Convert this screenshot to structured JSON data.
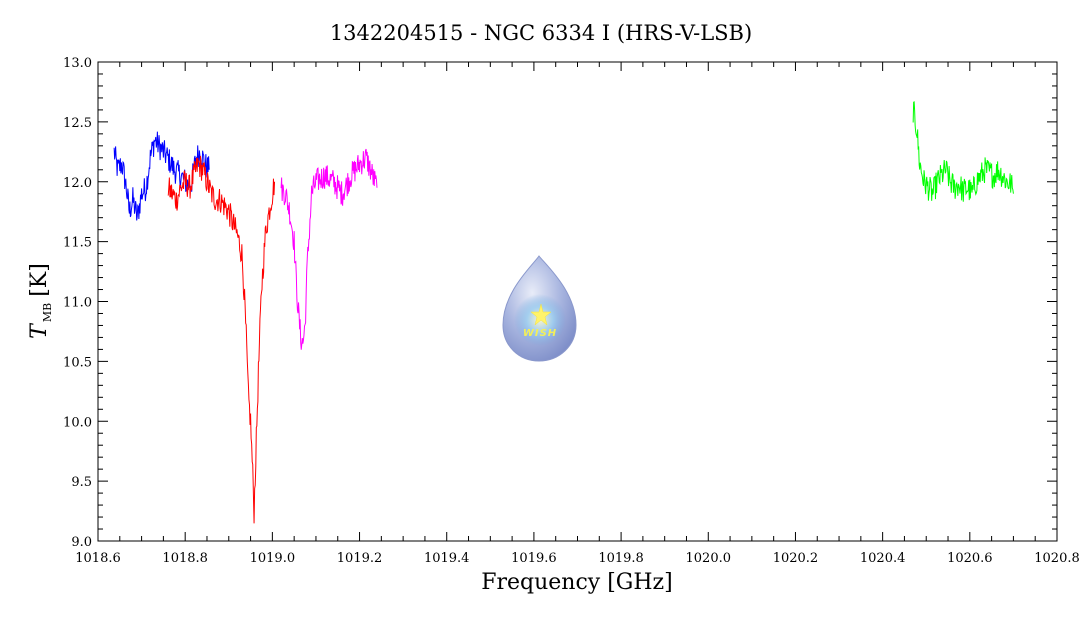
{
  "chart_data": {
    "type": "line",
    "title": "1342204515 - NGC 6334 I (HRS-V-LSB)",
    "xlabel": "Frequency [GHz]",
    "ylabel": {
      "main": "T",
      "sub": "MB",
      "unit": "[K]"
    },
    "xlim": [
      1018.6,
      1020.8
    ],
    "ylim": [
      9.0,
      13.0
    ],
    "x_ticks": [
      "1018.6",
      "1018.8",
      "1019.0",
      "1019.2",
      "1019.4",
      "1019.6",
      "1019.8",
      "1020.0",
      "1020.2",
      "1020.4",
      "1020.6",
      "1020.8"
    ],
    "y_ticks": [
      "9.0",
      "9.5",
      "10.0",
      "10.5",
      "11.0",
      "11.5",
      "12.0",
      "12.5",
      "13.0"
    ],
    "series": [
      {
        "color": "#0000ff",
        "points": [
          [
            1018.637,
            12.25
          ],
          [
            1018.645,
            12.1
          ],
          [
            1018.655,
            12.15
          ],
          [
            1018.665,
            11.95
          ],
          [
            1018.672,
            11.75
          ],
          [
            1018.68,
            11.85
          ],
          [
            1018.69,
            11.7
          ],
          [
            1018.7,
            11.9
          ],
          [
            1018.71,
            11.95
          ],
          [
            1018.72,
            12.2
          ],
          [
            1018.73,
            12.35
          ],
          [
            1018.74,
            12.3
          ],
          [
            1018.75,
            12.25
          ],
          [
            1018.76,
            12.2
          ],
          [
            1018.775,
            12.1
          ],
          [
            1018.79,
            12.05
          ],
          [
            1018.805,
            11.98
          ],
          [
            1018.815,
            12.0
          ],
          [
            1018.825,
            12.2
          ],
          [
            1018.835,
            12.25
          ],
          [
            1018.845,
            12.15
          ],
          [
            1018.855,
            12.1
          ]
        ]
      },
      {
        "color": "#ff0000",
        "points": [
          [
            1018.76,
            11.95
          ],
          [
            1018.77,
            11.9
          ],
          [
            1018.78,
            11.85
          ],
          [
            1018.79,
            11.95
          ],
          [
            1018.8,
            12.0
          ],
          [
            1018.81,
            11.95
          ],
          [
            1018.82,
            12.05
          ],
          [
            1018.83,
            12.15
          ],
          [
            1018.84,
            12.1
          ],
          [
            1018.85,
            12.0
          ],
          [
            1018.86,
            11.9
          ],
          [
            1018.87,
            11.85
          ],
          [
            1018.88,
            11.85
          ],
          [
            1018.89,
            11.8
          ],
          [
            1018.9,
            11.75
          ],
          [
            1018.91,
            11.65
          ],
          [
            1018.92,
            11.55
          ],
          [
            1018.93,
            11.4
          ],
          [
            1018.935,
            11.1
          ],
          [
            1018.94,
            10.7
          ],
          [
            1018.945,
            10.2
          ],
          [
            1018.95,
            10.0
          ],
          [
            1018.955,
            9.55
          ],
          [
            1018.958,
            9.25
          ],
          [
            1018.962,
            9.7
          ],
          [
            1018.968,
            10.4
          ],
          [
            1018.975,
            11.1
          ],
          [
            1018.985,
            11.6
          ],
          [
            1018.995,
            11.8
          ],
          [
            1019.005,
            12.0
          ]
        ]
      },
      {
        "color": "#ff00ff",
        "points": [
          [
            1019.02,
            11.95
          ],
          [
            1019.03,
            11.9
          ],
          [
            1019.04,
            11.75
          ],
          [
            1019.05,
            11.5
          ],
          [
            1019.055,
            11.15
          ],
          [
            1019.06,
            10.9
          ],
          [
            1019.065,
            10.7
          ],
          [
            1019.07,
            10.65
          ],
          [
            1019.075,
            10.8
          ],
          [
            1019.08,
            11.3
          ],
          [
            1019.09,
            11.9
          ],
          [
            1019.1,
            12.0
          ],
          [
            1019.12,
            12.05
          ],
          [
            1019.14,
            12.0
          ],
          [
            1019.16,
            11.9
          ],
          [
            1019.18,
            12.05
          ],
          [
            1019.2,
            12.15
          ],
          [
            1019.215,
            12.2
          ],
          [
            1019.225,
            12.1
          ],
          [
            1019.235,
            12.0
          ],
          [
            1019.24,
            11.95
          ]
        ]
      },
      {
        "color": "#00ff00",
        "points": [
          [
            1020.47,
            12.6
          ],
          [
            1020.478,
            12.45
          ],
          [
            1020.485,
            12.15
          ],
          [
            1020.495,
            12.0
          ],
          [
            1020.505,
            11.95
          ],
          [
            1020.515,
            11.9
          ],
          [
            1020.525,
            12.0
          ],
          [
            1020.535,
            12.05
          ],
          [
            1020.545,
            12.1
          ],
          [
            1020.555,
            12.0
          ],
          [
            1020.565,
            11.95
          ],
          [
            1020.575,
            11.98
          ],
          [
            1020.585,
            11.92
          ],
          [
            1020.595,
            11.95
          ],
          [
            1020.605,
            11.9
          ],
          [
            1020.615,
            12.0
          ],
          [
            1020.625,
            12.05
          ],
          [
            1020.635,
            12.1
          ],
          [
            1020.645,
            12.08
          ],
          [
            1020.655,
            12.05
          ],
          [
            1020.665,
            12.1
          ],
          [
            1020.675,
            12.05
          ],
          [
            1020.685,
            12.0
          ],
          [
            1020.695,
            11.98
          ],
          [
            1020.7,
            11.9
          ]
        ]
      }
    ],
    "grid": false,
    "legend": "none"
  },
  "logo": {
    "text": "WISH"
  }
}
